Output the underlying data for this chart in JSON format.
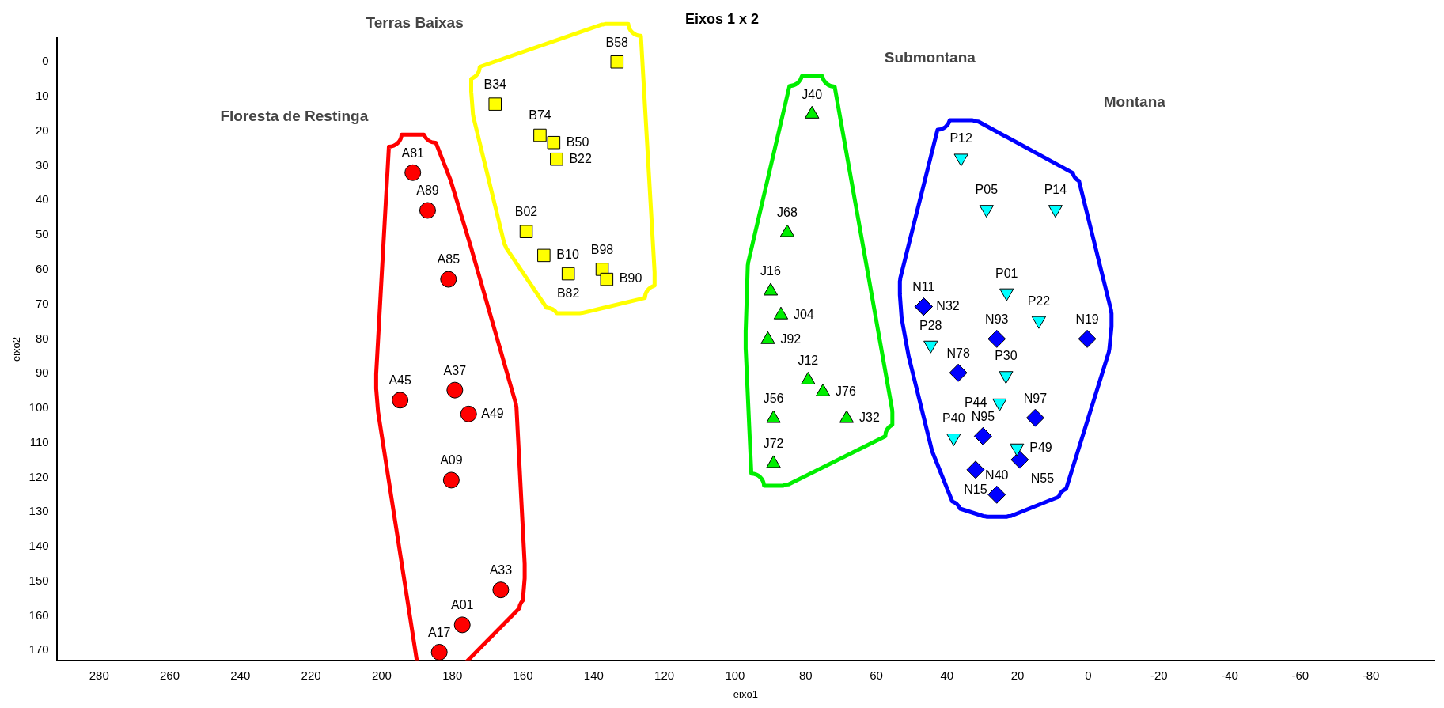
{
  "chart_data": {
    "type": "scatter",
    "title": "Eixos 1 x 2",
    "xlabel": "eixo1",
    "ylabel": "eixo2",
    "xlim": [
      292,
      -98
    ],
    "ylim": [
      173,
      -7
    ],
    "xticks": [
      280,
      260,
      240,
      220,
      200,
      180,
      160,
      140,
      120,
      100,
      80,
      60,
      40,
      20,
      0,
      -20,
      -40,
      -60,
      -80
    ],
    "yticks": [
      0,
      10,
      20,
      30,
      40,
      50,
      60,
      70,
      80,
      90,
      100,
      110,
      120,
      130,
      140,
      150,
      160,
      170
    ],
    "grid": false,
    "legend": false,
    "annotations": [
      "Floresta de Restinga",
      "Terras Baixas",
      "Submontana",
      "Montana"
    ],
    "series": [
      {
        "color": "#ff0000",
        "marker": "circle",
        "x": [
          191.2,
          187.0,
          181.1,
          194.8,
          179.3,
          175.4,
          180.3,
          166.3,
          177.2,
          183.7
        ],
        "values": [
          32.0,
          42.9,
          62.8,
          97.7,
          94.8,
          101.7,
          120.8,
          152.5,
          162.6,
          170.5
        ],
        "value_labels": [
          "A81",
          "A89",
          "A85",
          "A45",
          "A37",
          "A49",
          "A09",
          "A33",
          "A01",
          "A17"
        ]
      },
      {
        "color": "#ffff00",
        "marker": "square",
        "x": [
          133.4,
          167.9,
          155.2,
          151.3,
          150.5,
          159.1,
          154.1,
          147.2,
          137.6,
          136.3
        ],
        "values": [
          0.0,
          12.2,
          21.2,
          23.3,
          28.1,
          49.0,
          55.9,
          61.2,
          59.9,
          62.8
        ],
        "value_labels": [
          "B58",
          "B34",
          "B74",
          "B50",
          "B22",
          "B02",
          "B10",
          "B82",
          "B98",
          "B90"
        ]
      },
      {
        "color": "#00ee00",
        "marker": "triangle",
        "x": [
          78.2,
          85.2,
          89.9,
          87.0,
          90.7,
          79.3,
          75.1,
          89.1,
          68.4,
          89.1
        ],
        "values": [
          15.1,
          49.3,
          66.2,
          73.1,
          80.2,
          91.9,
          95.3,
          103.0,
          103.0,
          116.0
        ],
        "value_labels": [
          "J40",
          "J68",
          "J16",
          "J04",
          "J92",
          "J12",
          "J76",
          "J56",
          "J32",
          "J72"
        ]
      },
      {
        "color": "#00ffff",
        "marker": "triangle-down",
        "x": [
          36.0,
          28.8,
          9.3,
          23.1,
          14.0,
          44.6,
          23.3,
          25.1,
          38.1,
          20.2
        ],
        "values": [
          27.8,
          42.6,
          42.6,
          66.7,
          74.7,
          81.8,
          90.6,
          98.5,
          108.6,
          111.5
        ],
        "value_labels": [
          "P12",
          "P05",
          "P14",
          "P01",
          "P22",
          "P28",
          "P30",
          "P44",
          "P40",
          "P49"
        ]
      },
      {
        "color": "#0000ff",
        "marker": "diamond",
        "x": [
          46.6,
          46.6,
          25.9,
          0.3,
          36.8,
          15.0,
          29.8,
          31.9,
          19.4,
          25.9
        ],
        "values": [
          70.7,
          70.7,
          80.0,
          80.0,
          89.8,
          102.8,
          108.1,
          117.8,
          114.9,
          125.0
        ],
        "value_labels": [
          "N11",
          "N32",
          "N93",
          "N19",
          "N78",
          "N97",
          "N95",
          "N15",
          "N55",
          "N40"
        ]
      }
    ]
  }
}
